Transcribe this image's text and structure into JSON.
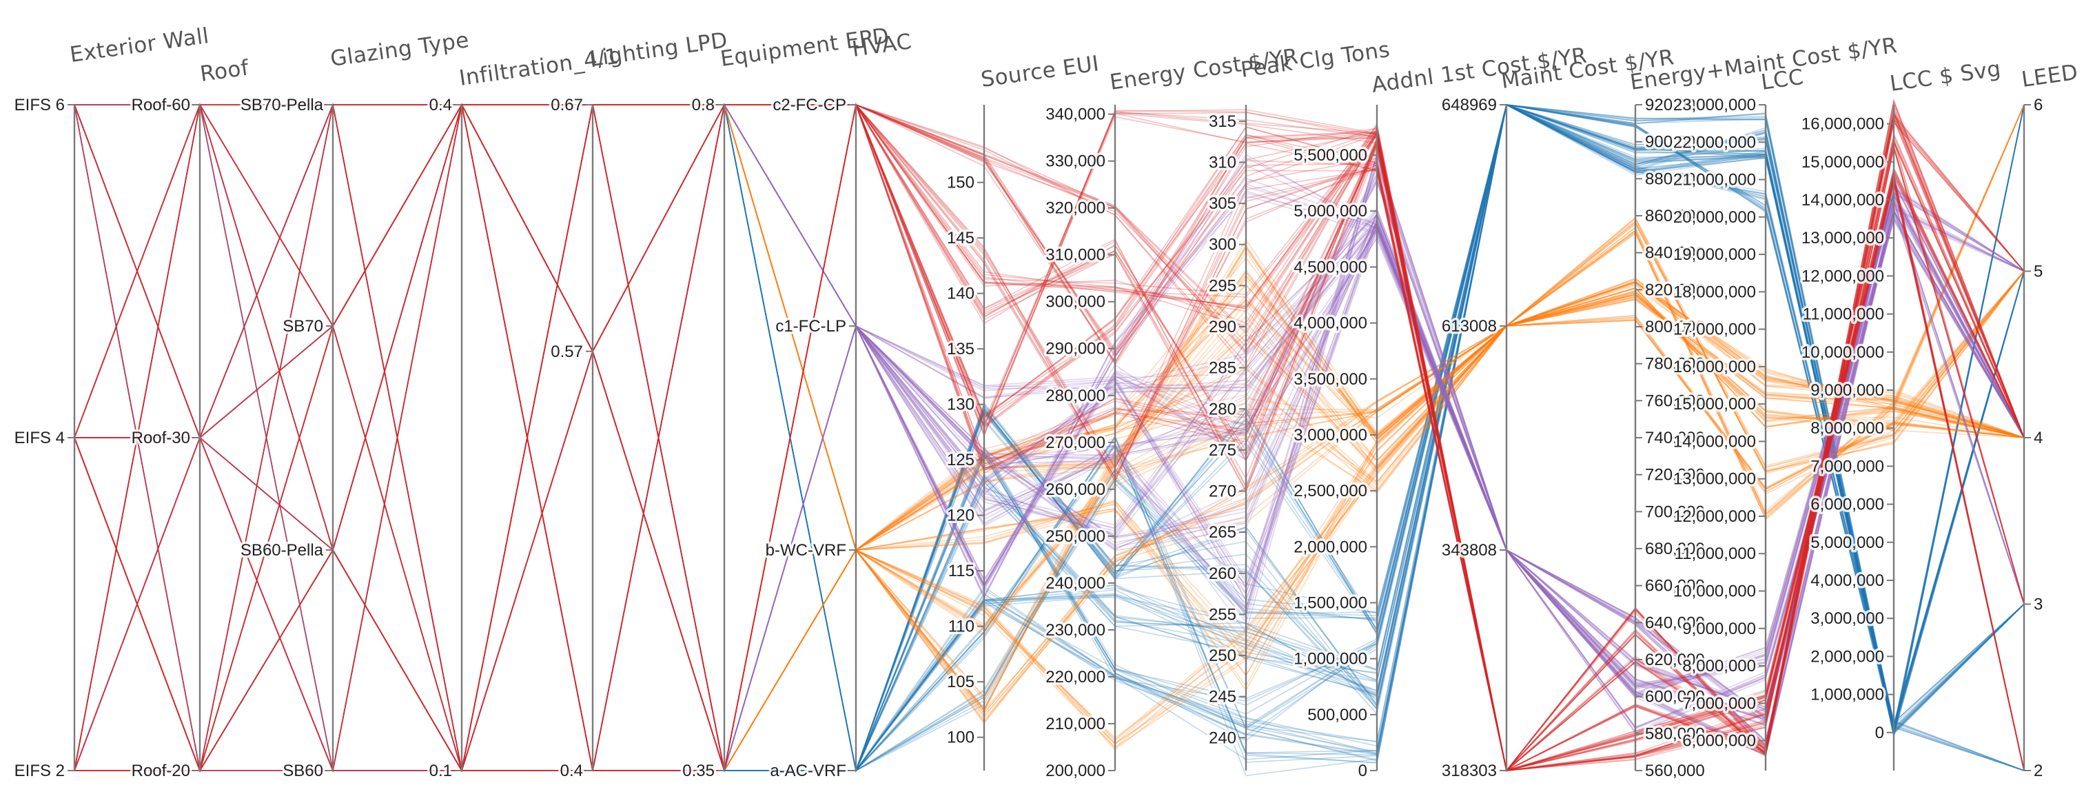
{
  "chart_data": {
    "type": "parallel-coordinates",
    "colors": {
      "a-AC-VRF": "#1f77b4",
      "b-WC-VRF": "#ff7f0e",
      "c1-FC-LP": "#9467bd",
      "c2-FC-CP": "#d62728",
      "neutral": "#a0526d"
    },
    "axes": [
      {
        "key": "exterior_wall",
        "label": "Exterior Wall",
        "categorical": true,
        "values": [
          "EIFS 2",
          "EIFS 4",
          "EIFS 6"
        ],
        "ticks": [
          "EIFS 6",
          "EIFS 4",
          "EIFS 2"
        ]
      },
      {
        "key": "roof",
        "label": "Roof",
        "categorical": true,
        "values": [
          "Roof-20",
          "Roof-30",
          "Roof-60"
        ],
        "ticks": [
          "Roof-60",
          "Roof-30",
          "Roof-20"
        ]
      },
      {
        "key": "glazing_type",
        "label": "Glazing Type",
        "categorical": true,
        "values": [
          "SB60",
          "SB60-Pella",
          "SB70",
          "SB70-Pella"
        ],
        "ticks": [
          "SB70-Pella",
          "SB70",
          "SB60-Pella",
          "SB60"
        ]
      },
      {
        "key": "infiltration",
        "label": "Infiltration_4/1",
        "range": [
          0.1,
          0.4
        ],
        "ticks": [
          "0.4",
          "0.1"
        ]
      },
      {
        "key": "lighting_lpd",
        "label": "Lighting LPD",
        "range": [
          0.4,
          0.67
        ],
        "ticks": [
          "0.67",
          "0.57",
          "0.4"
        ]
      },
      {
        "key": "equipment_epd",
        "label": "Equipment EPD",
        "range": [
          0.35,
          0.8
        ],
        "ticks": [
          "0.8",
          "0.35"
        ]
      },
      {
        "key": "hvac",
        "label": "HVAC",
        "categorical": true,
        "values": [
          "a-AC-VRF",
          "b-WC-VRF",
          "c1-FC-LP",
          "c2-FC-CP"
        ],
        "ticks": [
          "c2-FC-CP",
          "c1-FC-LP",
          "b-WC-VRF",
          "a-AC-VRF"
        ]
      },
      {
        "key": "source_eui",
        "label": "Source EUI",
        "range": [
          97,
          157
        ],
        "ticks": [
          "150",
          "145",
          "140",
          "135",
          "130",
          "125",
          "120",
          "115",
          "110",
          "105",
          "100"
        ]
      },
      {
        "key": "energy_cost",
        "label": "Energy Cost $/YR",
        "range": [
          200000,
          342000
        ],
        "ticks": [
          "340,000",
          "330,000",
          "320,000",
          "310,000",
          "300,000",
          "290,000",
          "280,000",
          "270,000",
          "260,000",
          "250,000",
          "240,000",
          "230,000",
          "220,000",
          "210,000",
          "200,000"
        ]
      },
      {
        "key": "peak_clg_tons",
        "label": "Peak Clg Tons",
        "range": [
          236,
          317
        ],
        "ticks": [
          "315",
          "310",
          "305",
          "300",
          "295",
          "290",
          "285",
          "280",
          "275",
          "270",
          "265",
          "260",
          "255",
          "250",
          "245",
          "240"
        ]
      },
      {
        "key": "addnl_first_cost",
        "label": "Addnl 1st Cost $/YR",
        "range": [
          0,
          5950000
        ],
        "ticks": [
          "5,500,000",
          "5,000,000",
          "4,500,000",
          "4,000,000",
          "3,500,000",
          "3,000,000",
          "2,500,000",
          "2,000,000",
          "1,500,000",
          "1,000,000",
          "500,000",
          "0"
        ]
      },
      {
        "key": "maint_cost",
        "label": "Maint Cost $/YR",
        "categorical": true,
        "values": [
          "318303",
          "343808",
          "613008",
          "648969"
        ],
        "ticks": [
          "648969",
          "613008",
          "343808",
          "318303"
        ]
      },
      {
        "key": "energy_maint_cost",
        "label": "Energy+Maint Cost $/YR",
        "range": [
          560000,
          920000
        ],
        "ticks": [
          "920,000",
          "900,000",
          "880,000",
          "860,000",
          "840,000",
          "820,000",
          "800,000",
          "780,000",
          "760,000",
          "740,000",
          "720,000",
          "700,000",
          "680,000",
          "660,000",
          "640,000",
          "620,000",
          "600,000",
          "580,000",
          "560,000"
        ]
      },
      {
        "key": "lcc",
        "label": "LCC",
        "range": [
          5200000,
          23000000
        ],
        "ticks": [
          "23,000,000",
          "22,000,000",
          "21,000,000",
          "20,000,000",
          "19,000,000",
          "18,000,000",
          "17,000,000",
          "16,000,000",
          "15,000,000",
          "14,000,000",
          "13,000,000",
          "12,000,000",
          "11,000,000",
          "10,000,000",
          "9,000,000",
          "8,000,000",
          "7,000,000",
          "6,000,000"
        ]
      },
      {
        "key": "lcc_svg",
        "label": "LCC $ Svg",
        "range": [
          -1000000,
          16500000
        ],
        "ticks": [
          "16,000,000",
          "15,000,000",
          "14,000,000",
          "13,000,000",
          "12,000,000",
          "11,000,000",
          "10,000,000",
          "9,000,000",
          "8,000,000",
          "7,000,000",
          "6,000,000",
          "5,000,000",
          "4,000,000",
          "3,000,000",
          "2,000,000",
          "1,000,000",
          "0"
        ]
      },
      {
        "key": "leed",
        "label": "LEED",
        "range": [
          2,
          6
        ],
        "ticks": [
          "6",
          "5",
          "4",
          "3",
          "2"
        ]
      }
    ],
    "groups": [
      {
        "hvac": "a-AC-VRF",
        "maint_cost": "648969",
        "source_eui": [
          100,
          131
        ],
        "energy_cost": [
          205000,
          280000
        ],
        "peak_clg_tons": [
          238,
          282
        ],
        "addnl_first_cost": [
          0,
          1500000
        ],
        "energy_maint_cost": [
          860000,
          920000
        ],
        "lcc": [
          19800000,
          22800000
        ],
        "lcc_svg": [
          0,
          200000
        ],
        "leed": [
          2,
          6
        ]
      },
      {
        "hvac": "b-WC-VRF",
        "maint_cost": "613008",
        "source_eui": [
          98,
          128
        ],
        "energy_cost": [
          200000,
          275000
        ],
        "peak_clg_tons": [
          240,
          300
        ],
        "addnl_first_cost": [
          2500000,
          3300000
        ],
        "energy_maint_cost": [
          800000,
          870000
        ],
        "lcc": [
          11800000,
          16000000
        ],
        "lcc_svg": [
          7500000,
          9500000
        ],
        "leed": [
          3,
          6
        ]
      },
      {
        "hvac": "c1-FC-LP",
        "maint_cost": "343808",
        "source_eui": [
          112,
          136
        ],
        "energy_cost": [
          235000,
          290000
        ],
        "peak_clg_tons": [
          255,
          310
        ],
        "addnl_first_cost": [
          4800000,
          5600000
        ],
        "energy_maint_cost": [
          575000,
          670000
        ],
        "lcc": [
          5500000,
          8500000
        ],
        "lcc_svg": [
          13500000,
          15500000
        ],
        "leed": [
          3,
          5
        ]
      },
      {
        "hvac": "c2-FC-CP",
        "maint_cost": "318303",
        "source_eui": [
          115,
          153
        ],
        "energy_cost": [
          255000,
          342000
        ],
        "peak_clg_tons": [
          270,
          316
        ],
        "addnl_first_cost": [
          5200000,
          5900000
        ],
        "energy_maint_cost": [
          565000,
          660000
        ],
        "lcc": [
          5300000,
          8000000
        ],
        "lcc_svg": [
          14500000,
          16500000
        ],
        "leed": [
          2,
          5
        ]
      }
    ]
  }
}
